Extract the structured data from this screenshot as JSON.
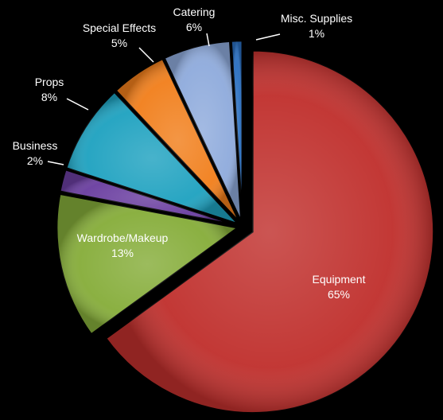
{
  "chart_data": {
    "type": "pie",
    "title": "",
    "slices": [
      {
        "label": "Equipment",
        "value": 65,
        "pct_label": "65%",
        "color": "#c0302d",
        "label_inside": true
      },
      {
        "label": "Wardrobe/Makeup",
        "value": 13,
        "pct_label": "13%",
        "color": "#86ad3a",
        "label_inside": true
      },
      {
        "label": "Business",
        "value": 2,
        "pct_label": "2%",
        "color": "#6a3ea0",
        "label_inside": false
      },
      {
        "label": "Props",
        "value": 8,
        "pct_label": "8%",
        "color": "#1fa2c0",
        "label_inside": false
      },
      {
        "label": "Special Effects",
        "value": 5,
        "pct_label": "5%",
        "color": "#f17f1c",
        "label_inside": false
      },
      {
        "label": "Catering",
        "value": 6,
        "pct_label": "6%",
        "color": "#8fabdc",
        "label_inside": false
      },
      {
        "label": "Misc. Supplies",
        "value": 1,
        "pct_label": "1%",
        "color": "#2a6fc0",
        "label_inside": false
      }
    ]
  }
}
